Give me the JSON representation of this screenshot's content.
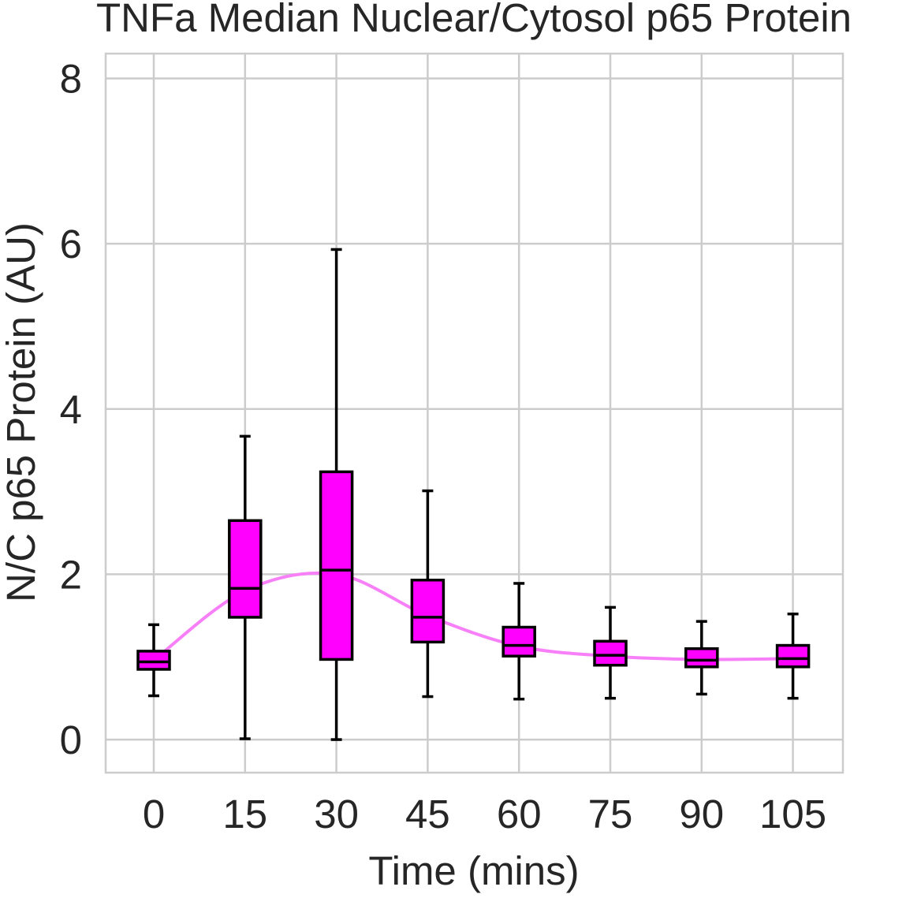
{
  "chart_data": {
    "type": "box",
    "title": "TNFa Median Nuclear/Cytosol p65 Protein",
    "xlabel": "Time (mins)",
    "ylabel": "N/C p65 Protein (AU)",
    "ylim": [
      -0.4,
      8.3
    ],
    "yticks": [
      0,
      2,
      4,
      6,
      8
    ],
    "categories": [
      "0",
      "15",
      "30",
      "45",
      "60",
      "75",
      "90",
      "105"
    ],
    "grid": true,
    "box_color": "#ff00ff",
    "edge_color": "#000000",
    "trend_color": "#f77ff7",
    "grid_color": "#cccccc",
    "boxes": [
      {
        "whisker_low": 0.53,
        "q1": 0.85,
        "median": 0.94,
        "q3": 1.07,
        "whisker_high": 1.39
      },
      {
        "whisker_low": 0.01,
        "q1": 1.48,
        "median": 1.83,
        "q3": 2.65,
        "whisker_high": 3.67
      },
      {
        "whisker_low": 0.0,
        "q1": 0.97,
        "median": 2.05,
        "q3": 3.24,
        "whisker_high": 5.93
      },
      {
        "whisker_low": 0.52,
        "q1": 1.18,
        "median": 1.48,
        "q3": 1.93,
        "whisker_high": 3.01
      },
      {
        "whisker_low": 0.49,
        "q1": 1.01,
        "median": 1.14,
        "q3": 1.36,
        "whisker_high": 1.89
      },
      {
        "whisker_low": 0.5,
        "q1": 0.9,
        "median": 1.02,
        "q3": 1.19,
        "whisker_high": 1.6
      },
      {
        "whisker_low": 0.55,
        "q1": 0.88,
        "median": 0.96,
        "q3": 1.1,
        "whisker_high": 1.43
      },
      {
        "whisker_low": 0.5,
        "q1": 0.88,
        "median": 0.98,
        "q3": 1.14,
        "whisker_high": 1.52
      }
    ],
    "trend_line": {
      "x": [
        "0",
        "15",
        "30",
        "45",
        "60",
        "75",
        "90",
        "105"
      ],
      "y": [
        0.96,
        1.8,
        2.0,
        1.5,
        1.13,
        1.01,
        0.97,
        0.98
      ]
    }
  }
}
